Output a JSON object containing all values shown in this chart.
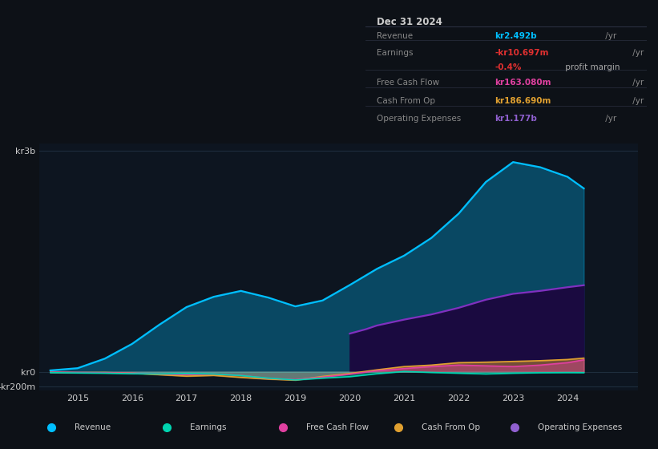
{
  "bg_color": "#0d1117",
  "plot_bg_color": "#0d1520",
  "years": [
    2014.5,
    2015,
    2015.5,
    2016,
    2016.5,
    2017,
    2017.5,
    2018,
    2018.5,
    2019,
    2019.5,
    2020,
    2020.5,
    2021,
    2021.5,
    2022,
    2022.5,
    2023,
    2023.5,
    2024,
    2024.3
  ],
  "revenue": [
    20,
    50,
    180,
    380,
    640,
    880,
    1020,
    1100,
    1010,
    890,
    970,
    1180,
    1400,
    1580,
    1820,
    2150,
    2580,
    2850,
    2780,
    2650,
    2492
  ],
  "earnings": [
    -10,
    -15,
    -18,
    -25,
    -28,
    -22,
    -28,
    -50,
    -85,
    -110,
    -85,
    -65,
    -25,
    5,
    -8,
    -18,
    -28,
    -18,
    -12,
    -10,
    -11
  ],
  "fcf": [
    -5,
    -8,
    -12,
    -18,
    -28,
    -38,
    -28,
    -48,
    -88,
    -105,
    -72,
    -32,
    15,
    45,
    72,
    92,
    82,
    72,
    92,
    125,
    163
  ],
  "cash_from_op": [
    -6,
    -10,
    -8,
    -18,
    -38,
    -58,
    -48,
    -75,
    -98,
    -112,
    -62,
    -22,
    28,
    72,
    92,
    125,
    132,
    142,
    152,
    168,
    187
  ],
  "op_expenses_years": [
    2020,
    2020.3,
    2020.5,
    2021,
    2021.5,
    2022,
    2022.5,
    2023,
    2023.5,
    2024,
    2024.3
  ],
  "op_expenses": [
    520,
    580,
    630,
    710,
    780,
    870,
    980,
    1060,
    1100,
    1150,
    1177
  ],
  "revenue_color": "#00bfff",
  "earnings_color": "#00d4b0",
  "fcf_color": "#e040a0",
  "cash_from_op_color": "#e0a030",
  "op_expenses_color": "#8030c0",
  "op_expenses_fill_color": "#1a0a40",
  "grid_color": "#1e2d3d",
  "xtick_years": [
    2015,
    2016,
    2017,
    2018,
    2019,
    2020,
    2021,
    2022,
    2023,
    2024
  ],
  "infobox": {
    "title": "Dec 31 2024",
    "bg_color": "#090d12",
    "border_color": "#2a3040",
    "title_color": "#cccccc",
    "label_color": "#888888",
    "rows": [
      {
        "label": "Revenue",
        "value": "kr2.492b",
        "suffix": " /yr",
        "value_color": "#00bfff"
      },
      {
        "label": "Earnings",
        "value": "-kr10.697m",
        "suffix": " /yr",
        "value_color": "#e03030"
      },
      {
        "label": "",
        "value": "-0.4%",
        "suffix": " profit margin",
        "value_color": "#e03030",
        "suffix_color": "#aaaaaa"
      },
      {
        "label": "Free Cash Flow",
        "value": "kr163.080m",
        "suffix": " /yr",
        "value_color": "#e040a0"
      },
      {
        "label": "Cash From Op",
        "value": "kr186.690m",
        "suffix": " /yr",
        "value_color": "#e0a030"
      },
      {
        "label": "Operating Expenses",
        "value": "kr1.177b",
        "suffix": " /yr",
        "value_color": "#9060d0"
      }
    ]
  },
  "legend_items": [
    {
      "label": "Revenue",
      "color": "#00bfff"
    },
    {
      "label": "Earnings",
      "color": "#00d4b0"
    },
    {
      "label": "Free Cash Flow",
      "color": "#e040a0"
    },
    {
      "label": "Cash From Op",
      "color": "#e0a030"
    },
    {
      "label": "Operating Expenses",
      "color": "#9060d0"
    }
  ]
}
